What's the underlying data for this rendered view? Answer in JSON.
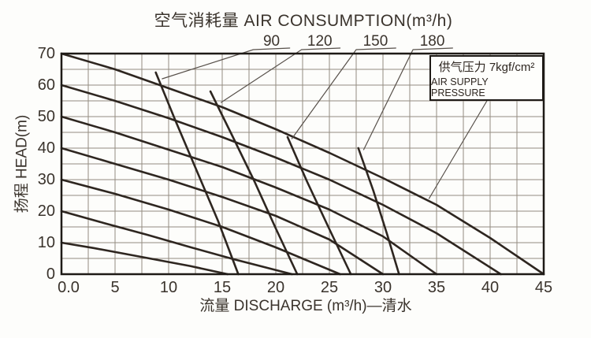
{
  "title": "空气消耗量 AIR CONSUMPTION(m³/h)",
  "pressure_box": {
    "line1": "供气压力 7kgf/cm²",
    "line2": "AIR SUPPLY PRESSURE"
  },
  "colors": {
    "curve": "#2e2620",
    "grid": "#948b80",
    "border": "#1e1a16",
    "leader": "#57504a",
    "text": "#3a332c"
  },
  "chart_data": {
    "type": "line",
    "title": "空气消耗量 AIR CONSUMPTION(m³/h)",
    "xlabel": "流量 DISCHARGE (m³/h)—清水",
    "ylabel": "扬程 HEAD(m)",
    "xlim": [
      0,
      45
    ],
    "ylim": [
      0,
      70
    ],
    "grid": {
      "x_step": 2.5,
      "y_step": 5
    },
    "x_ticks": {
      "labels": [
        "0.0",
        "5",
        "10",
        "15",
        "20",
        "25",
        "30",
        "35",
        "40",
        "45"
      ],
      "values": [
        0,
        5,
        10,
        15,
        20,
        25,
        30,
        35,
        40,
        45
      ]
    },
    "y_ticks": {
      "labels": [
        "70",
        "60",
        "50",
        "40",
        "30",
        "20",
        "10",
        "0"
      ],
      "values": [
        70,
        60,
        50,
        40,
        30,
        20,
        10,
        0
      ]
    },
    "series": [
      {
        "name": "head-curve-70",
        "kind": "performance",
        "points": [
          [
            0,
            70
          ],
          [
            5,
            65
          ],
          [
            10,
            59
          ],
          [
            15,
            53
          ],
          [
            20,
            46
          ],
          [
            25,
            38.5
          ],
          [
            30,
            30.5
          ],
          [
            35,
            22
          ],
          [
            40,
            11.5
          ],
          [
            45,
            0
          ]
        ]
      },
      {
        "name": "head-curve-60",
        "kind": "performance",
        "points": [
          [
            0,
            60
          ],
          [
            5,
            55
          ],
          [
            10,
            49.5
          ],
          [
            15,
            43.5
          ],
          [
            20,
            37
          ],
          [
            25,
            30
          ],
          [
            30,
            22
          ],
          [
            35,
            13
          ],
          [
            41,
            0
          ]
        ]
      },
      {
        "name": "head-curve-50",
        "kind": "performance",
        "points": [
          [
            0,
            50
          ],
          [
            5,
            45
          ],
          [
            10,
            39.5
          ],
          [
            15,
            34
          ],
          [
            20,
            27.5
          ],
          [
            25,
            20.5
          ],
          [
            30,
            12
          ],
          [
            35,
            0
          ]
        ]
      },
      {
        "name": "head-curve-40",
        "kind": "performance",
        "points": [
          [
            0,
            40
          ],
          [
            5,
            35
          ],
          [
            10,
            30
          ],
          [
            15,
            24.5
          ],
          [
            20,
            18.5
          ],
          [
            25,
            11
          ],
          [
            30,
            0
          ]
        ]
      },
      {
        "name": "head-curve-30",
        "kind": "performance",
        "points": [
          [
            0,
            30
          ],
          [
            5,
            25.5
          ],
          [
            10,
            20.5
          ],
          [
            15,
            15
          ],
          [
            20,
            8.5
          ],
          [
            26,
            0
          ]
        ]
      },
      {
        "name": "head-curve-20",
        "kind": "performance",
        "points": [
          [
            0,
            20
          ],
          [
            4,
            16.2
          ],
          [
            8,
            12.5
          ],
          [
            12,
            8.6
          ],
          [
            16,
            4.8
          ],
          [
            21.5,
            0
          ]
        ]
      },
      {
        "name": "head-curve-10",
        "kind": "performance",
        "points": [
          [
            0,
            10
          ],
          [
            3,
            8.3
          ],
          [
            6,
            6.4
          ],
          [
            9,
            4.5
          ],
          [
            12,
            2.6
          ],
          [
            15.5,
            0
          ]
        ]
      },
      {
        "name": "air-consumption-90",
        "kind": "air",
        "points": [
          [
            8.8,
            64
          ],
          [
            10.6,
            49
          ],
          [
            12.6,
            33
          ],
          [
            14.6,
            17
          ],
          [
            16.5,
            0
          ]
        ]
      },
      {
        "name": "air-consumption-120",
        "kind": "air",
        "points": [
          [
            13.9,
            58
          ],
          [
            16,
            43.5
          ],
          [
            18,
            29.5
          ],
          [
            20,
            14.5
          ],
          [
            22,
            0
          ]
        ]
      },
      {
        "name": "air-consumption-150",
        "kind": "air",
        "points": [
          [
            21.1,
            43.5
          ],
          [
            22.9,
            29.5
          ],
          [
            24.9,
            15
          ],
          [
            27,
            0
          ]
        ]
      },
      {
        "name": "air-consumption-180",
        "kind": "air",
        "points": [
          [
            27.7,
            40
          ],
          [
            29.1,
            26.5
          ],
          [
            30.4,
            12.5
          ],
          [
            31.5,
            0
          ]
        ]
      }
    ],
    "air_labels": [
      {
        "text": "90",
        "center_x": 19.6,
        "underline": [
          17.9,
          21.3
        ],
        "target": [
          9.4,
          62
        ]
      },
      {
        "text": "120",
        "center_x": 24.1,
        "underline": [
          22.4,
          26.0
        ],
        "target": [
          14.9,
          54.5
        ]
      },
      {
        "text": "150",
        "center_x": 29.3,
        "underline": [
          27.5,
          31.2
        ],
        "target": [
          21.5,
          43
        ]
      },
      {
        "text": "180",
        "center_x": 34.6,
        "underline": [
          32.8,
          36.5
        ],
        "target": [
          28.2,
          39.5
        ]
      }
    ],
    "box_leader": {
      "from": [
        39.7,
        55
      ],
      "to": [
        34.3,
        24
      ]
    },
    "legend_position": "none",
    "annotation": "供气压力 7kgf/cm² AIR SUPPLY PRESSURE"
  }
}
